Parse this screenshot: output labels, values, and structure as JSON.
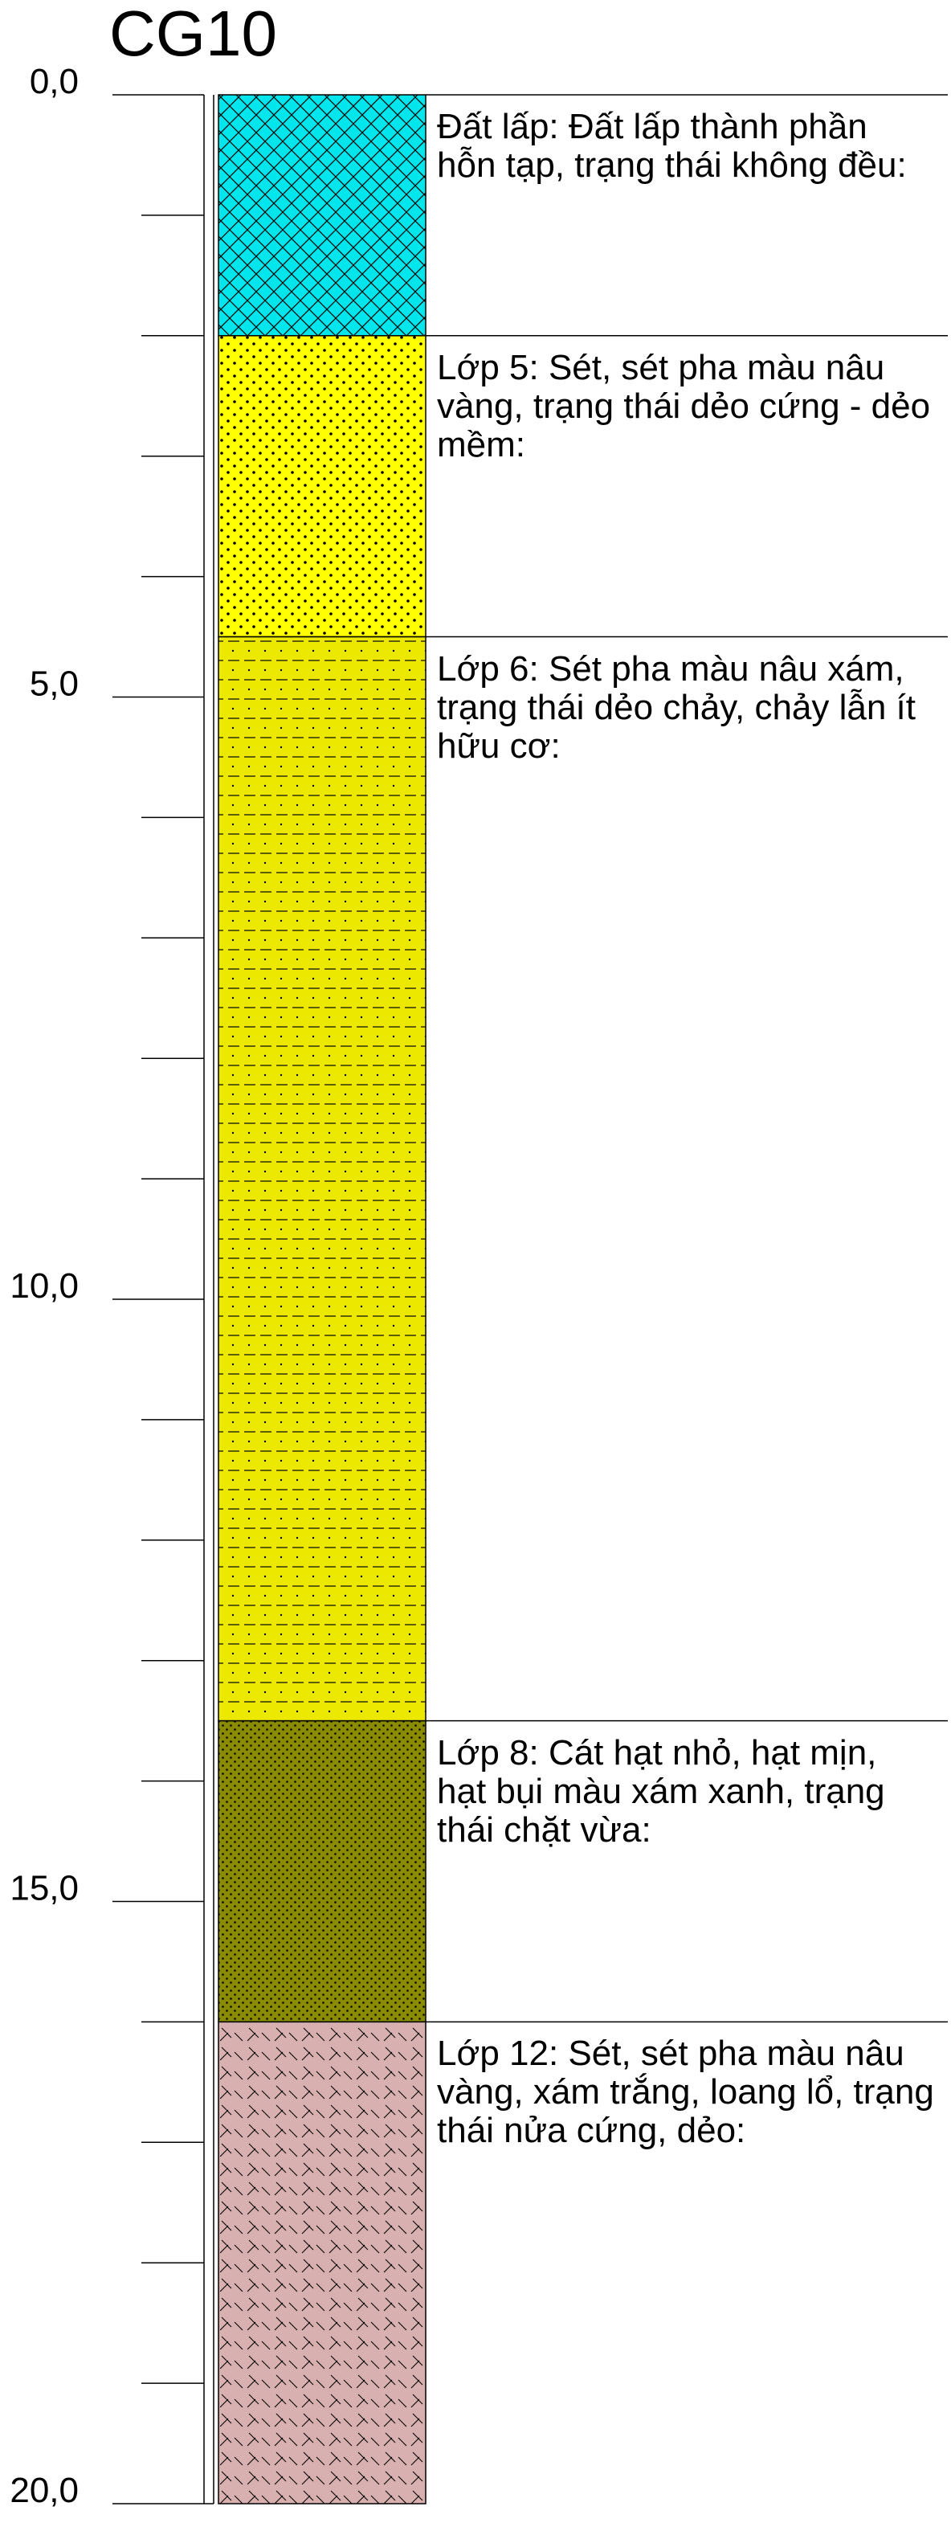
{
  "borehole": {
    "title": "CG10"
  },
  "depth_axis": {
    "unit": "m",
    "min": 0,
    "max": 20,
    "labels": [
      {
        "depth": 0,
        "text": "0,0"
      },
      {
        "depth": 5,
        "text": "5,0"
      },
      {
        "depth": 10,
        "text": "10,0"
      },
      {
        "depth": 15,
        "text": "15,0"
      },
      {
        "depth": 20,
        "text": "20,0"
      }
    ],
    "minor_tick_step": 1
  },
  "layers": [
    {
      "id": "dat-lap",
      "top": 0.0,
      "bottom": 2.0,
      "color": "#00e6ec",
      "pattern": "crosshatch",
      "description": "Đất lấp: Đất lấp thành phần hỗn tạp, trạng thái không đều:"
    },
    {
      "id": "lop-5",
      "top": 2.0,
      "bottom": 4.5,
      "color": "#ffff00",
      "pattern": "dots",
      "description": "Lớp 5: Sét, sét pha màu nâu vàng, trạng thái dẻo cứng - dẻo mềm:"
    },
    {
      "id": "lop-6",
      "top": 4.5,
      "bottom": 13.5,
      "color": "#ece800",
      "pattern": "dash-dot",
      "description": "Lớp 6: Sét pha màu nâu xám, trạng thái dẻo chảy, chảy lẫn ít hữu cơ:"
    },
    {
      "id": "lop-8",
      "top": 13.5,
      "bottom": 16.0,
      "color": "#8b8b00",
      "pattern": "fine-dots",
      "description": "Lớp 8: Cát hạt nhỏ, hạt mịn, hạt bụi màu xám xanh, trạng thái chặt vừa:"
    },
    {
      "id": "lop-12",
      "top": 16.0,
      "bottom": 20.0,
      "color": "#d9b0b0",
      "pattern": "slashes",
      "description": "Lớp 12: Sét, sét pha màu nâu vàng, xám trắng, loang lổ, trạng thái nửa cứng, dẻo:"
    }
  ]
}
